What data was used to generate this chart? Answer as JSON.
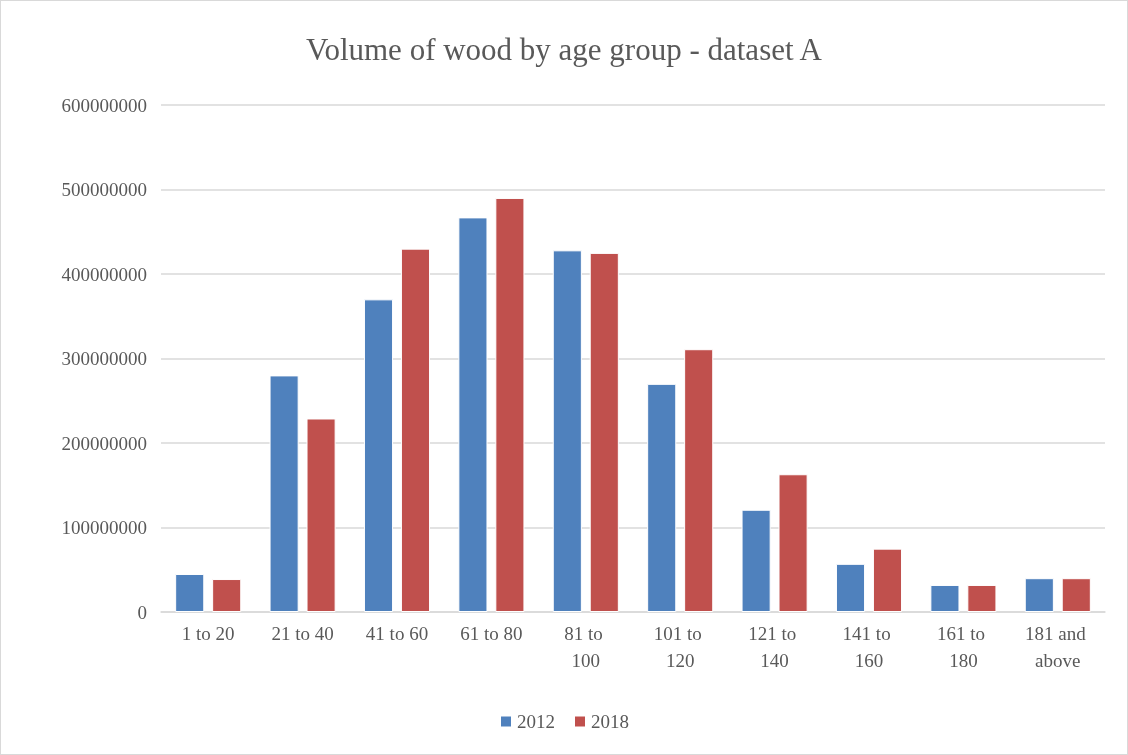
{
  "chart_data": {
    "type": "bar",
    "title": "Volume of wood by age group - dataset A",
    "categories": [
      "1 to 20",
      "21 to 40",
      "41 to 60",
      "61 to 80",
      "81 to 100",
      "101 to 120",
      "121 to 140",
      "141 to 160",
      "161 to 180",
      "181 and above"
    ],
    "series": [
      {
        "name": "2012",
        "color": "#4f81bd",
        "values": [
          45000000,
          280000000,
          370000000,
          467000000,
          428000000,
          270000000,
          121000000,
          57000000,
          32000000,
          40000000
        ]
      },
      {
        "name": "2018",
        "color": "#c0504d",
        "values": [
          39000000,
          229000000,
          430000000,
          490000000,
          425000000,
          311000000,
          163000000,
          75000000,
          32000000,
          40000000
        ]
      }
    ],
    "ylim": [
      0,
      600000000
    ],
    "yticks": [
      0,
      100000000,
      200000000,
      300000000,
      400000000,
      500000000,
      600000000
    ],
    "grid": "y",
    "legend": "bottom"
  }
}
